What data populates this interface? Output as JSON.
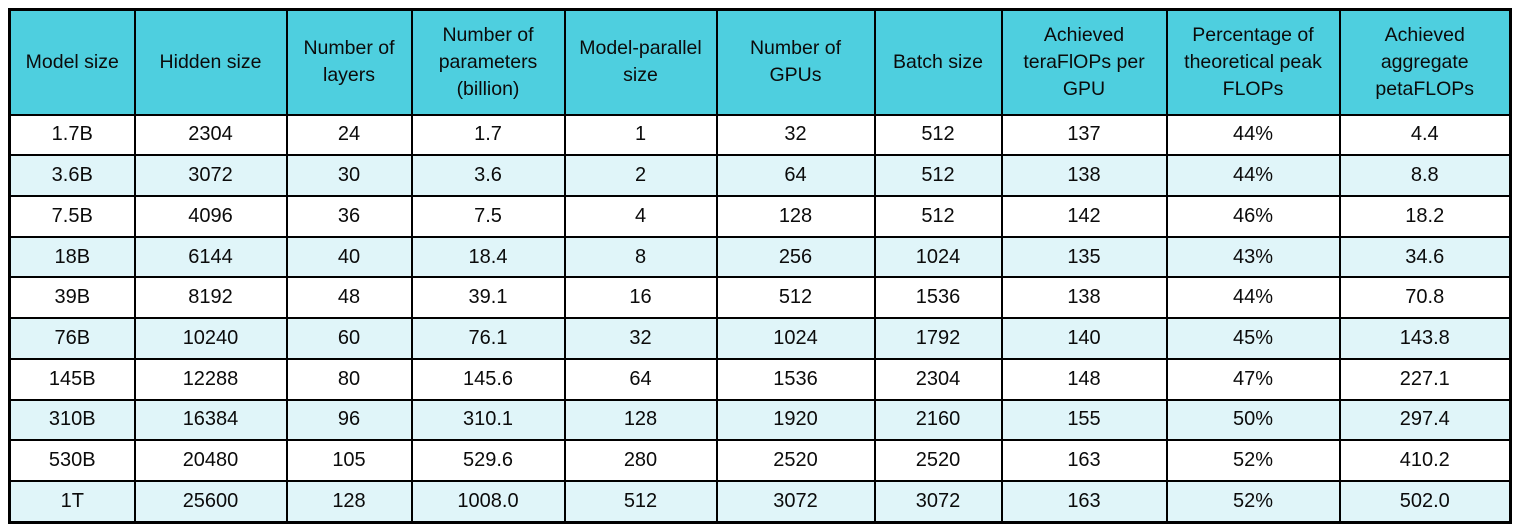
{
  "colors": {
    "header_bg": "#4ECFDF",
    "row_bg": "#FFFFFF",
    "row_alt_bg": "#E0F5F9",
    "border": "#000000"
  },
  "chart_data": {
    "type": "table",
    "columns": [
      "Model size",
      "Hidden size",
      "Number of layers",
      "Number of parameters (billion)",
      "Model-parallel size",
      "Number of GPUs",
      "Batch size",
      "Achieved teraFlOPs per GPU",
      "Percentage of theoretical peak FLOPs",
      "Achieved aggregate petaFLOPs"
    ],
    "rows": [
      [
        "1.7B",
        "2304",
        "24",
        "1.7",
        "1",
        "32",
        "512",
        "137",
        "44%",
        "4.4"
      ],
      [
        "3.6B",
        "3072",
        "30",
        "3.6",
        "2",
        "64",
        "512",
        "138",
        "44%",
        "8.8"
      ],
      [
        "7.5B",
        "4096",
        "36",
        "7.5",
        "4",
        "128",
        "512",
        "142",
        "46%",
        "18.2"
      ],
      [
        "18B",
        "6144",
        "40",
        "18.4",
        "8",
        "256",
        "1024",
        "135",
        "43%",
        "34.6"
      ],
      [
        "39B",
        "8192",
        "48",
        "39.1",
        "16",
        "512",
        "1536",
        "138",
        "44%",
        "70.8"
      ],
      [
        "76B",
        "10240",
        "60",
        "76.1",
        "32",
        "1024",
        "1792",
        "140",
        "45%",
        "143.8"
      ],
      [
        "145B",
        "12288",
        "80",
        "145.6",
        "64",
        "1536",
        "2304",
        "148",
        "47%",
        "227.1"
      ],
      [
        "310B",
        "16384",
        "96",
        "310.1",
        "128",
        "1920",
        "2160",
        "155",
        "50%",
        "297.4"
      ],
      [
        "530B",
        "20480",
        "105",
        "529.6",
        "280",
        "2520",
        "2520",
        "163",
        "52%",
        "410.2"
      ],
      [
        "1T",
        "25600",
        "128",
        "1008.0",
        "512",
        "3072",
        "3072",
        "163",
        "52%",
        "502.0"
      ]
    ]
  }
}
